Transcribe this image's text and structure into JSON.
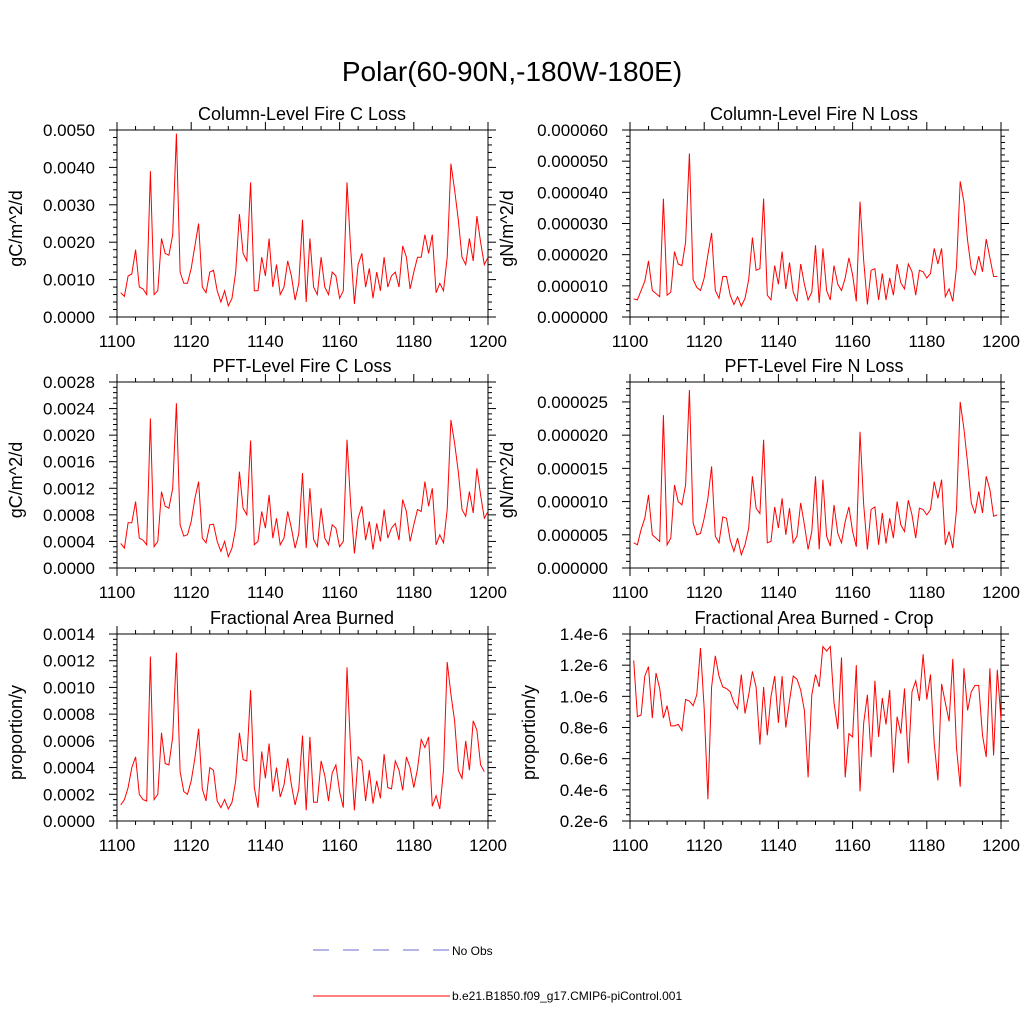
{
  "figure": {
    "title": "Polar(60-90N,-180W-180E)",
    "line_color": "#ff0000",
    "obs_color": "#6a6acd"
  },
  "legend": {
    "entries": [
      {
        "label": "No Obs",
        "style": "dashed",
        "color": "#6a6acd"
      },
      {
        "label": "b.e21.B1850.f09_g17.CMIP6-piControl.001",
        "style": "solid",
        "color": "#ff0000"
      }
    ]
  },
  "chart_data": [
    {
      "type": "line",
      "title": "Column-Level Fire C Loss",
      "xlabel": "",
      "ylabel": "gC/m^2/d",
      "xlim": [
        1100,
        1200
      ],
      "ylim": [
        0,
        0.005
      ],
      "xticks": [
        1100,
        1120,
        1140,
        1160,
        1180,
        1200
      ],
      "xtick_labels": [
        "1100",
        "1120",
        "1140",
        "1160",
        "1180",
        "1200"
      ],
      "yticks": [
        0,
        0.001,
        0.002,
        0.003,
        0.004,
        0.005
      ],
      "ytick_labels": [
        "0.0000",
        "0.0010",
        "0.0020",
        "0.0030",
        "0.0040",
        "0.0050"
      ],
      "x_start": 1101,
      "values": [
        0.00065,
        0.00055,
        0.0011,
        0.00115,
        0.0018,
        0.0008,
        0.00075,
        0.0006,
        0.0039,
        0.0006,
        0.0007,
        0.0021,
        0.0017,
        0.00165,
        0.0022,
        0.0049,
        0.0012,
        0.0009,
        0.0009,
        0.0013,
        0.0019,
        0.0025,
        0.0008,
        0.00065,
        0.0012,
        0.00125,
        0.0007,
        0.0004,
        0.0007,
        0.0003,
        0.0005,
        0.0012,
        0.00275,
        0.0017,
        0.0015,
        0.0036,
        0.0007,
        0.0007,
        0.0016,
        0.0011,
        0.0021,
        0.0008,
        0.0014,
        0.0006,
        0.0008,
        0.0015,
        0.0011,
        0.00045,
        0.0009,
        0.0026,
        0.0004,
        0.0021,
        0.0008,
        0.0006,
        0.0016,
        0.0008,
        0.0006,
        0.0012,
        0.0011,
        0.0005,
        0.0007,
        0.0036,
        0.0018,
        0.00035,
        0.0014,
        0.0017,
        0.0008,
        0.0013,
        0.0005,
        0.0012,
        0.0007,
        0.0016,
        0.0008,
        0.0011,
        0.0012,
        0.0008,
        0.0019,
        0.0016,
        0.00075,
        0.0012,
        0.0016,
        0.0016,
        0.0022,
        0.0017,
        0.0022,
        0.00065,
        0.0009,
        0.0007,
        0.0016,
        0.0041,
        0.0034,
        0.0026,
        0.0016,
        0.0014,
        0.0021,
        0.0015,
        0.0027,
        0.002,
        0.0014,
        0.0016
      ]
    },
    {
      "type": "line",
      "title": "Column-Level Fire N Loss",
      "xlabel": "",
      "ylabel": "gN/m^2/d",
      "xlim": [
        1100,
        1200
      ],
      "ylim": [
        0,
        6e-05
      ],
      "xticks": [
        1100,
        1120,
        1140,
        1160,
        1180,
        1200
      ],
      "xtick_labels": [
        "1100",
        "1120",
        "1140",
        "1160",
        "1180",
        "1200"
      ],
      "yticks": [
        0,
        1e-05,
        2e-05,
        3e-05,
        4e-05,
        5e-05,
        6e-05
      ],
      "ytick_labels": [
        "0.000000",
        "0.000010",
        "0.000020",
        "0.000030",
        "0.000040",
        "0.000050",
        "0.000060"
      ],
      "x_start": 1101,
      "values": [
        5.8e-06,
        5.5e-06,
        8.5e-06,
        1.15e-05,
        1.8e-05,
        8.5e-06,
        7.5e-06,
        6.5e-06,
        3.8e-05,
        7e-06,
        8e-06,
        2.1e-05,
        1.7e-05,
        1.65e-05,
        2.4e-05,
        5.25e-05,
        1.2e-05,
        9.5e-06,
        8.5e-06,
        1.25e-05,
        2e-05,
        2.7e-05,
        8.5e-06,
        6e-06,
        1.3e-05,
        1.3e-05,
        7e-06,
        4e-06,
        6.5e-06,
        3.5e-06,
        6e-06,
        1.2e-05,
        2.55e-05,
        1.5e-05,
        1.55e-05,
        3.8e-05,
        7e-06,
        5.5e-06,
        1.65e-05,
        1.05e-05,
        2.1e-05,
        9e-06,
        1.75e-05,
        8e-06,
        5e-06,
        1.7e-05,
        1.05e-05,
        5.5e-06,
        8e-06,
        2.3e-05,
        4.5e-06,
        2.2e-05,
        8.5e-06,
        5.5e-06,
        1.65e-05,
        1.05e-05,
        8.5e-06,
        1.25e-05,
        1.9e-05,
        1.35e-05,
        5e-06,
        3.7e-05,
        1.8e-05,
        4e-06,
        1.5e-05,
        1.55e-05,
        5.5e-06,
        1.4e-05,
        5.5e-06,
        1.25e-05,
        7e-06,
        1.7e-05,
        1.1e-05,
        9e-06,
        1.7e-05,
        1.45e-05,
        7e-06,
        1.5e-05,
        1.45e-05,
        1.25e-05,
        1.4e-05,
        2.2e-05,
        1.7e-05,
        2.2e-05,
        6.5e-06,
        9e-06,
        5e-06,
        1.6e-05,
        4.35e-05,
        3.7e-05,
        2.45e-05,
        1.55e-05,
        1.35e-05,
        1.95e-05,
        1.45e-05,
        2.5e-05,
        1.9e-05,
        1.3e-05,
        1.3e-05
      ]
    },
    {
      "type": "line",
      "title": "PFT-Level Fire C Loss",
      "xlabel": "",
      "ylabel": "gC/m^2/d",
      "xlim": [
        1100,
        1200
      ],
      "ylim": [
        0,
        0.0028
      ],
      "xticks": [
        1100,
        1120,
        1140,
        1160,
        1180,
        1200
      ],
      "xtick_labels": [
        "1100",
        "1120",
        "1140",
        "1160",
        "1180",
        "1200"
      ],
      "yticks": [
        0,
        0.0004,
        0.0008,
        0.0012,
        0.0016,
        0.002,
        0.0024,
        0.0028
      ],
      "ytick_labels": [
        "0.0000",
        "0.0004",
        "0.0008",
        "0.0012",
        "0.0016",
        "0.0020",
        "0.0024",
        "0.0028"
      ],
      "x_start": 1101,
      "values": [
        0.00037,
        0.0003,
        0.00068,
        0.00068,
        0.001,
        0.00045,
        0.00042,
        0.00035,
        0.00225,
        0.00032,
        0.0004,
        0.00115,
        0.00093,
        0.0009,
        0.0012,
        0.00248,
        0.00065,
        0.00048,
        0.0005,
        0.0007,
        0.00105,
        0.0013,
        0.00045,
        0.00038,
        0.00065,
        0.00066,
        0.0004,
        0.00025,
        0.0004,
        0.00017,
        0.0003,
        0.0006,
        0.00145,
        0.0009,
        0.0008,
        0.00192,
        0.00035,
        0.0004,
        0.00085,
        0.0006,
        0.0011,
        0.00045,
        0.00075,
        0.00035,
        0.00045,
        0.00085,
        0.0006,
        0.0003,
        0.00052,
        0.00143,
        0.0003,
        0.0012,
        0.00043,
        0.00032,
        0.0009,
        0.00045,
        0.00035,
        0.00065,
        0.0006,
        0.00032,
        0.0004,
        0.00193,
        0.00095,
        0.00022,
        0.00075,
        0.00093,
        0.00042,
        0.0007,
        0.00028,
        0.00067,
        0.0004,
        0.00088,
        0.00045,
        0.0006,
        0.00067,
        0.00042,
        0.00103,
        0.00085,
        0.0004,
        0.00065,
        0.00088,
        0.00085,
        0.0013,
        0.00093,
        0.0012,
        0.00035,
        0.0005,
        0.00038,
        0.00088,
        0.00223,
        0.00188,
        0.00145,
        0.00088,
        0.00078,
        0.00115,
        0.00083,
        0.0015,
        0.0011,
        0.00075,
        0.00085
      ]
    },
    {
      "type": "line",
      "title": "PFT-Level Fire N Loss",
      "xlabel": "",
      "ylabel": "gN/m^2/d",
      "xlim": [
        1100,
        1200
      ],
      "ylim": [
        0,
        2.8e-05
      ],
      "xticks": [
        1100,
        1120,
        1140,
        1160,
        1180,
        1200
      ],
      "xtick_labels": [
        "1100",
        "1120",
        "1140",
        "1160",
        "1180",
        "1200"
      ],
      "yticks": [
        0,
        5e-06,
        1e-05,
        1.5e-05,
        2e-05,
        2.5e-05
      ],
      "ytick_labels": [
        "0.000000",
        "0.000005",
        "0.000010",
        "0.000015",
        "0.000020",
        "0.000025"
      ],
      "x_start": 1101,
      "values": [
        3.8e-06,
        3.5e-06,
        5.8e-06,
        7.5e-06,
        1.1e-05,
        5e-06,
        4.5e-06,
        4e-06,
        2.3e-05,
        3.5e-06,
        4.5e-06,
        1.25e-05,
        1e-05,
        9.5e-06,
        1.25e-05,
        2.68e-05,
        6.8e-06,
        5e-06,
        5.2e-06,
        7.5e-06,
        1.05e-05,
        1.53e-05,
        4.8e-06,
        3.8e-06,
        7.7e-06,
        7.5e-06,
        4.2e-06,
        2.5e-06,
        4.5e-06,
        2e-06,
        3.5e-06,
        6e-06,
        1.38e-05,
        9e-06,
        8.2e-06,
        1.93e-05,
        3.8e-06,
        4e-06,
        9.2e-06,
        6e-06,
        1.05e-05,
        5e-06,
        9e-06,
        3.8e-06,
        4.8e-06,
        9.8e-06,
        6.5e-06,
        2.8e-06,
        5.5e-06,
        1.38e-05,
        2.8e-06,
        1.33e-05,
        4.8e-06,
        3.3e-06,
        9.5e-06,
        5.2e-06,
        3.8e-06,
        7e-06,
        9.2e-06,
        5.5e-06,
        3.2e-06,
        2.05e-05,
        9.5e-06,
        2.8e-06,
        8.8e-06,
        9.2e-06,
        3.5e-06,
        8.3e-06,
        3.7e-06,
        7.5e-06,
        4.5e-06,
        1e-05,
        6.5e-06,
        5.5e-06,
        1.02e-05,
        8e-06,
        4.5e-06,
        9e-06,
        8.8e-06,
        8e-06,
        8.8e-06,
        1.3e-05,
        1.05e-05,
        1.33e-05,
        3.5e-06,
        5.5e-06,
        3e-06,
        8.8e-06,
        2.5e-05,
        2.1e-05,
        1.58e-05,
        9.8e-06,
        8.2e-06,
        1.15e-05,
        8.3e-06,
        1.38e-05,
        1.18e-05,
        7.8e-06,
        8e-06
      ]
    },
    {
      "type": "line",
      "title": "Fractional Area Burned",
      "xlabel": "",
      "ylabel": "proportion/y",
      "xlim": [
        1100,
        1200
      ],
      "ylim": [
        0,
        0.0014
      ],
      "xticks": [
        1100,
        1120,
        1140,
        1160,
        1180,
        1200
      ],
      "xtick_labels": [
        "1100",
        "1120",
        "1140",
        "1160",
        "1180",
        "1200"
      ],
      "yticks": [
        0,
        0.0002,
        0.0004,
        0.0006,
        0.0008,
        0.001,
        0.0012,
        0.0014
      ],
      "ytick_labels": [
        "0.0000",
        "0.0002",
        "0.0004",
        "0.0006",
        "0.0008",
        "0.0010",
        "0.0012",
        "0.0014"
      ],
      "x_start": 1101,
      "values": [
        0.00012,
        0.00016,
        0.00025,
        0.0004,
        0.00048,
        0.0002,
        0.00016,
        0.00015,
        0.00123,
        0.00016,
        0.0002,
        0.00066,
        0.00043,
        0.00042,
        0.00063,
        0.00126,
        0.00037,
        0.00022,
        0.0002,
        0.0003,
        0.00047,
        0.00069,
        0.00024,
        0.00015,
        0.0004,
        0.00038,
        0.00015,
        0.0001,
        0.00016,
        9e-05,
        0.00014,
        0.0003,
        0.00066,
        0.00046,
        0.00045,
        0.00098,
        0.00025,
        0.0001,
        0.00052,
        0.00032,
        0.00058,
        0.00022,
        0.0004,
        0.00018,
        0.00027,
        0.00047,
        0.00027,
        0.00012,
        0.00024,
        0.00064,
        8e-05,
        0.00063,
        0.00014,
        0.00014,
        0.00045,
        0.00034,
        0.00015,
        0.00036,
        0.00042,
        0.00022,
        0.0001,
        0.00115,
        0.00052,
        8e-05,
        0.00048,
        0.00045,
        0.00015,
        0.00038,
        0.00013,
        0.0003,
        0.00017,
        0.0005,
        0.00025,
        0.00024,
        0.00045,
        0.00038,
        0.00023,
        0.00048,
        0.0004,
        0.00025,
        0.00039,
        0.00061,
        0.00055,
        0.00063,
        0.00011,
        0.00019,
        9e-05,
        0.00038,
        0.00119,
        0.00095,
        0.00075,
        0.00038,
        0.00032,
        0.0006,
        0.00038,
        0.00075,
        0.00068,
        0.00042,
        0.00037
      ]
    },
    {
      "type": "line",
      "title": "Fractional Area Burned - Crop",
      "xlabel": "",
      "ylabel": "proportion/y",
      "xlim": [
        1100,
        1200
      ],
      "ylim": [
        2e-07,
        1.4e-06
      ],
      "xticks": [
        1100,
        1120,
        1140,
        1160,
        1180,
        1200
      ],
      "xtick_labels": [
        "1100",
        "1120",
        "1140",
        "1160",
        "1180",
        "1200"
      ],
      "yticks": [
        2e-07,
        4e-07,
        6e-07,
        8e-07,
        1e-06,
        1.2e-06,
        1.4e-06
      ],
      "ytick_labels": [
        "0.2e-6",
        "0.4e-6",
        "0.6e-6",
        "0.8e-6",
        "1.0e-6",
        "1.2e-6",
        "1.4e-6"
      ],
      "x_start": 1101,
      "values": [
        1.23e-06,
        8.7e-07,
        8.8e-07,
        1.13e-06,
        1.19e-06,
        8.6e-07,
        1.15e-06,
        1.05e-06,
        8.6e-07,
        9.4e-07,
        8.1e-07,
        8.1e-07,
        8.2e-07,
        7.8e-07,
        9.8e-07,
        9.7e-07,
        9.4e-07,
        1.01e-06,
        1.31e-06,
        9.2e-07,
        3.4e-07,
        1.06e-06,
        1.26e-06,
        1.13e-06,
        1.06e-06,
        1.05e-06,
        1.03e-06,
        9.6e-07,
        9.2e-07,
        1.14e-06,
        8.9e-07,
        1.01e-06,
        1.16e-06,
        1.06e-06,
        6.9e-07,
        1.06e-06,
        7.5e-07,
        1e-06,
        1.13e-06,
        8.3e-07,
        1.13e-06,
        8e-07,
        9.7e-07,
        1.13e-06,
        1.11e-06,
        1.04e-06,
        9.1e-07,
        4.8e-07,
        1.01e-06,
        1.14e-06,
        1.06e-06,
        1.32e-06,
        1.29e-06,
        1.32e-06,
        9.6e-07,
        7.9e-07,
        1.25e-06,
        4.8e-07,
        7.6e-07,
        7.4e-07,
        1.2e-06,
        3.9e-07,
        8.3e-07,
        1.01e-06,
        6.1e-07,
        1.1e-06,
        7.4e-07,
        9.9e-07,
        8.2e-07,
        1.04e-06,
        5.1e-07,
        8.7e-07,
        7.6e-07,
        1.05e-06,
        5.7e-07,
        1.03e-06,
        1.1e-06,
        9.7e-07,
        1.27e-06,
        9.8e-07,
        1.14e-06,
        7e-07,
        4.6e-07,
        1.08e-06,
        9.6e-07,
        8.4e-07,
        1.24e-06,
        6.7e-07,
        4.2e-07,
        1.18e-06,
        9.1e-07,
        1.03e-06,
        1.07e-06,
        1.07e-06,
        7.5e-07,
        6.1e-07,
        1.18e-06,
        6.2e-07,
        1.17e-06,
        8.5e-07
      ]
    }
  ]
}
